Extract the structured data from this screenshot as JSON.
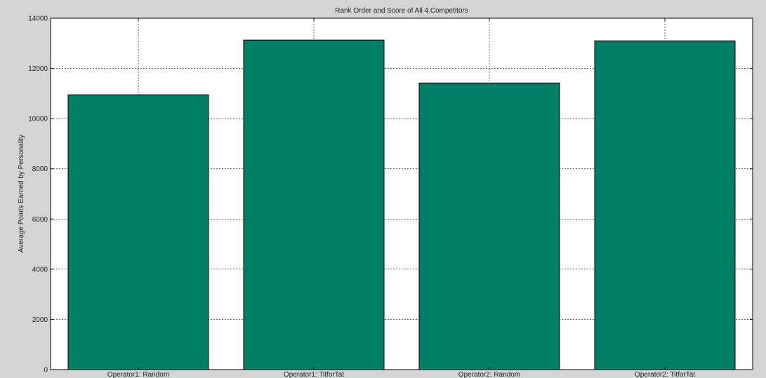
{
  "chart_data": {
    "type": "bar",
    "title": "Rank Order and Score of All 4 Competitors",
    "xlabel": "",
    "ylabel": "Average Points Earned by Personality",
    "categories": [
      "Operator1: Random",
      "Operator1: TitforTat",
      "Operator2: Random",
      "Operator2: TitforTat"
    ],
    "values": [
      10950,
      13130,
      11420,
      13100
    ],
    "ylim": [
      0,
      14000
    ],
    "yticks": [
      "0",
      "2000",
      "4000",
      "6000",
      "8000",
      "10000",
      "12000",
      "14000"
    ],
    "grid": true,
    "bar_color": "#007f67",
    "bar_edge_color": "#000000",
    "background_color": "#ffffff",
    "figure_color": "#d4d4d4"
  }
}
